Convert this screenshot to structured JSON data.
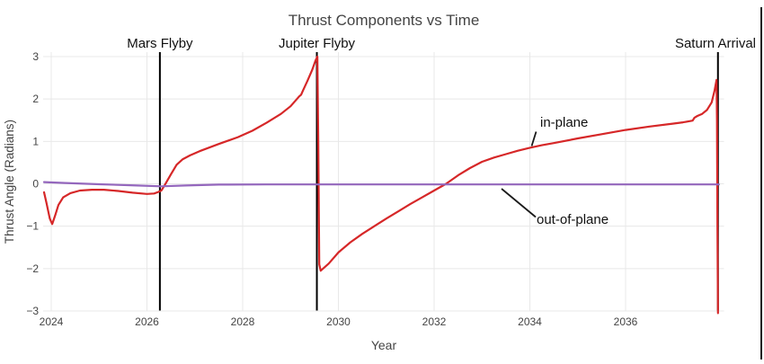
{
  "chart_data": {
    "type": "line",
    "title": "Thrust Components vs Time",
    "xlabel": "Year",
    "ylabel": "Thrust Angle (Radians)",
    "xlim": [
      2023.83,
      2038.06
    ],
    "ylim": [
      -3.05,
      3.05
    ],
    "grid": true,
    "legend_position": "none (inline annotations)",
    "x_ticks": [
      2024,
      2026,
      2028,
      2030,
      2032,
      2034,
      2036
    ],
    "y_ticks": [
      3,
      2,
      1,
      0,
      -1,
      -2,
      -3
    ],
    "y_tick_labels": [
      "3",
      "2",
      "1",
      "0",
      "−1",
      "−2",
      "−3"
    ],
    "colors": {
      "in_plane": "#d62728",
      "out_of_plane": "#9467bd",
      "event_line": "#000000",
      "grid": "#e8e8e8",
      "tick_text": "#444444",
      "annotation_text": "#101010",
      "background": "#ffffff"
    },
    "series": [
      {
        "name": "in-plane",
        "color": "#d62728",
        "points": [
          [
            2023.85,
            -0.2
          ],
          [
            2023.9,
            -0.45
          ],
          [
            2023.97,
            -0.82
          ],
          [
            2024.02,
            -0.95
          ],
          [
            2024.08,
            -0.75
          ],
          [
            2024.15,
            -0.5
          ],
          [
            2024.25,
            -0.32
          ],
          [
            2024.4,
            -0.22
          ],
          [
            2024.6,
            -0.16
          ],
          [
            2024.85,
            -0.14
          ],
          [
            2025.1,
            -0.14
          ],
          [
            2025.4,
            -0.17
          ],
          [
            2025.7,
            -0.21
          ],
          [
            2026.0,
            -0.24
          ],
          [
            2026.15,
            -0.23
          ],
          [
            2026.24,
            -0.19
          ],
          [
            2026.3,
            -0.16
          ],
          [
            2026.36,
            -0.05
          ],
          [
            2026.5,
            0.22
          ],
          [
            2026.62,
            0.45
          ],
          [
            2026.75,
            0.58
          ],
          [
            2026.9,
            0.67
          ],
          [
            2027.1,
            0.77
          ],
          [
            2027.5,
            0.94
          ],
          [
            2027.9,
            1.1
          ],
          [
            2028.2,
            1.25
          ],
          [
            2028.5,
            1.44
          ],
          [
            2028.8,
            1.65
          ],
          [
            2029.0,
            1.83
          ],
          [
            2029.15,
            2.02
          ],
          [
            2029.18,
            2.06
          ],
          [
            2029.22,
            2.1
          ],
          [
            2029.26,
            2.2
          ],
          [
            2029.35,
            2.42
          ],
          [
            2029.45,
            2.68
          ],
          [
            2029.52,
            2.9
          ],
          [
            2029.56,
            3.0
          ],
          [
            2029.58,
            1.0
          ],
          [
            2029.6,
            -1.9
          ],
          [
            2029.63,
            -2.05
          ],
          [
            2029.8,
            -1.88
          ],
          [
            2030.0,
            -1.62
          ],
          [
            2030.25,
            -1.38
          ],
          [
            2030.5,
            -1.18
          ],
          [
            2030.75,
            -1.0
          ],
          [
            2031.0,
            -0.82
          ],
          [
            2031.25,
            -0.65
          ],
          [
            2031.5,
            -0.48
          ],
          [
            2031.75,
            -0.32
          ],
          [
            2032.0,
            -0.16
          ],
          [
            2032.25,
            0.0
          ],
          [
            2032.5,
            0.2
          ],
          [
            2032.75,
            0.37
          ],
          [
            2033.0,
            0.52
          ],
          [
            2033.25,
            0.62
          ],
          [
            2033.5,
            0.7
          ],
          [
            2033.75,
            0.78
          ],
          [
            2034.0,
            0.85
          ],
          [
            2034.25,
            0.91
          ],
          [
            2034.5,
            0.96
          ],
          [
            2035.0,
            1.07
          ],
          [
            2035.5,
            1.17
          ],
          [
            2036.0,
            1.27
          ],
          [
            2036.5,
            1.35
          ],
          [
            2037.0,
            1.42
          ],
          [
            2037.2,
            1.45
          ],
          [
            2037.35,
            1.48
          ],
          [
            2037.4,
            1.49
          ],
          [
            2037.44,
            1.56
          ],
          [
            2037.5,
            1.6
          ],
          [
            2037.6,
            1.65
          ],
          [
            2037.7,
            1.74
          ],
          [
            2037.8,
            1.92
          ],
          [
            2037.86,
            2.2
          ],
          [
            2037.9,
            2.45
          ],
          [
            2037.91,
            1.5
          ],
          [
            2037.92,
            -1.0
          ],
          [
            2037.93,
            -3.05
          ]
        ]
      },
      {
        "name": "out-of-plane",
        "color": "#9467bd",
        "points": [
          [
            2023.85,
            0.04
          ],
          [
            2024.3,
            0.02
          ],
          [
            2025.0,
            -0.01
          ],
          [
            2025.8,
            -0.04
          ],
          [
            2026.3,
            -0.06
          ],
          [
            2026.8,
            -0.04
          ],
          [
            2027.5,
            -0.02
          ],
          [
            2028.5,
            -0.015
          ],
          [
            2030.0,
            -0.015
          ],
          [
            2032.0,
            -0.015
          ],
          [
            2034.0,
            -0.015
          ],
          [
            2036.0,
            -0.015
          ],
          [
            2037.95,
            -0.015
          ]
        ]
      }
    ],
    "events": [
      {
        "label": "Mars Flyby",
        "year": 2026.27
      },
      {
        "label": "Jupiter Flyby",
        "year": 2029.55
      },
      {
        "label": "Saturn Arrival",
        "year": 2037.93
      }
    ],
    "annotations": [
      {
        "text": "in-plane",
        "target_year": 2034.05,
        "target_value": 0.87
      },
      {
        "text": "out-of-plane",
        "target_year": 2033.41,
        "target_value": -0.05
      }
    ]
  }
}
